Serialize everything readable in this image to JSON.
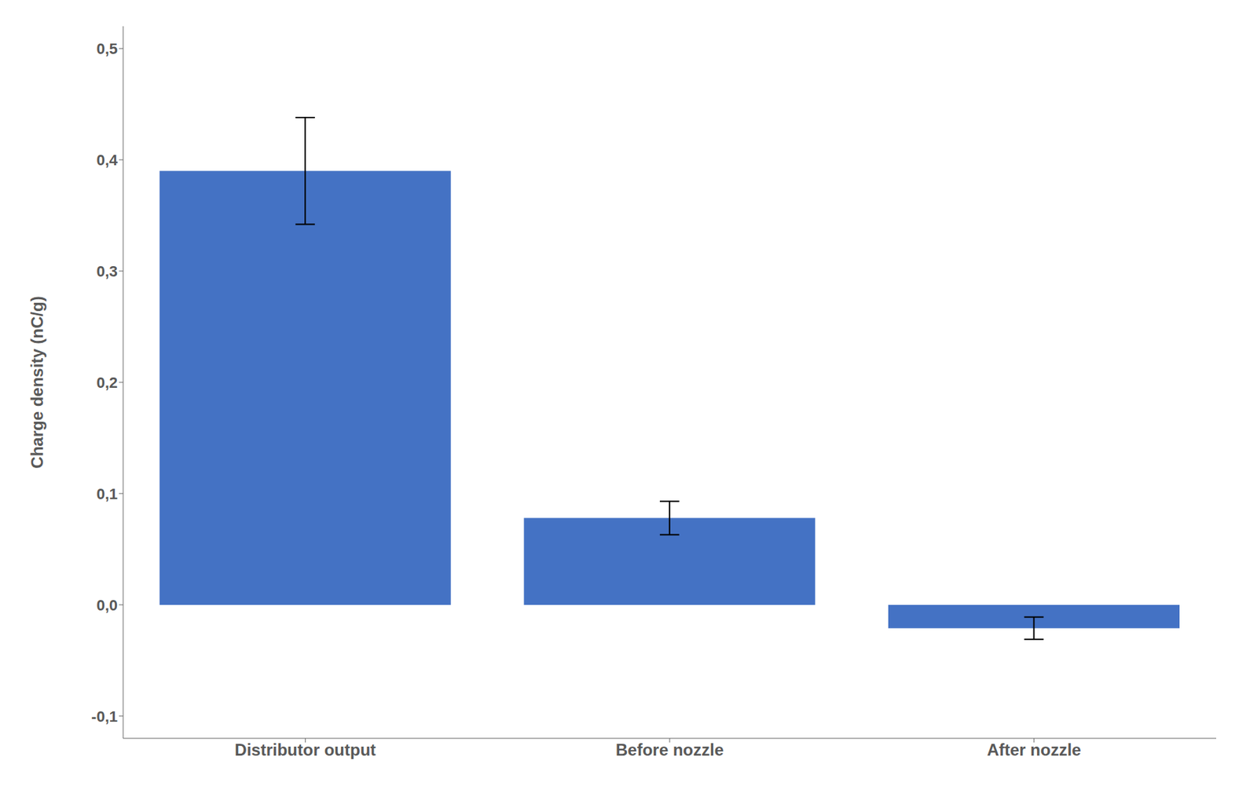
{
  "chart_data": {
    "type": "bar",
    "ylabel": "Charge density (nC/g)",
    "categories": [
      "Distributor output",
      "Before nozzle",
      "After nozzle"
    ],
    "values": [
      0.39,
      0.078,
      -0.021
    ],
    "errors": [
      0.048,
      0.015,
      0.01
    ],
    "color": "#4472C4",
    "ylim": [
      -0.12,
      0.52
    ],
    "yticks": [
      {
        "value": -0.1,
        "label": "-0,1"
      },
      {
        "value": 0.0,
        "label": "0,0"
      },
      {
        "value": 0.1,
        "label": "0,1"
      },
      {
        "value": 0.2,
        "label": "0,2"
      },
      {
        "value": 0.3,
        "label": "0,3"
      },
      {
        "value": 0.4,
        "label": "0,4"
      },
      {
        "value": 0.5,
        "label": "0,5"
      }
    ],
    "grid": false
  }
}
